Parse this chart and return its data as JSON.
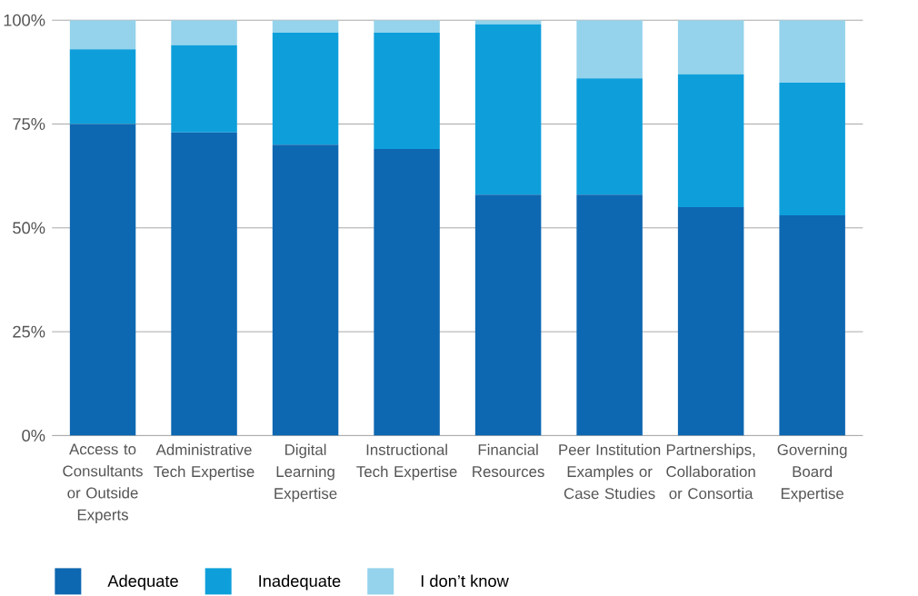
{
  "chart_data": {
    "type": "bar",
    "stacked": true,
    "categories": [
      "Access to Consultants or Outside Experts",
      "Administrative Tech Expertise",
      "Digital Learning Expertise",
      "Instructional Tech Expertise",
      "Financial Resources",
      "Peer Institution Examples or Case Studies",
      "Partnerships, Collaboration or Consortia",
      "Governing Board Expertise"
    ],
    "series": [
      {
        "name": "Adequate",
        "color": "#0e67b1",
        "values": [
          75,
          73,
          70,
          69,
          58,
          58,
          55,
          53
        ]
      },
      {
        "name": "Inadequate",
        "color": "#0e9fdb",
        "values": [
          18,
          21,
          27,
          28,
          41,
          28,
          32,
          32
        ]
      },
      {
        "name": "I don’t know",
        "color": "#94d3eb",
        "values": [
          7,
          6,
          3,
          3,
          1,
          14,
          13,
          15
        ]
      }
    ],
    "ylim": [
      0,
      100
    ],
    "yticks": [
      {
        "value": 0,
        "label": "0%"
      },
      {
        "value": 25,
        "label": "25%"
      },
      {
        "value": 50,
        "label": "50%"
      },
      {
        "value": 75,
        "label": "75%"
      },
      {
        "value": 100,
        "label": "100%"
      }
    ],
    "grid": "y",
    "legend": "bottom"
  }
}
